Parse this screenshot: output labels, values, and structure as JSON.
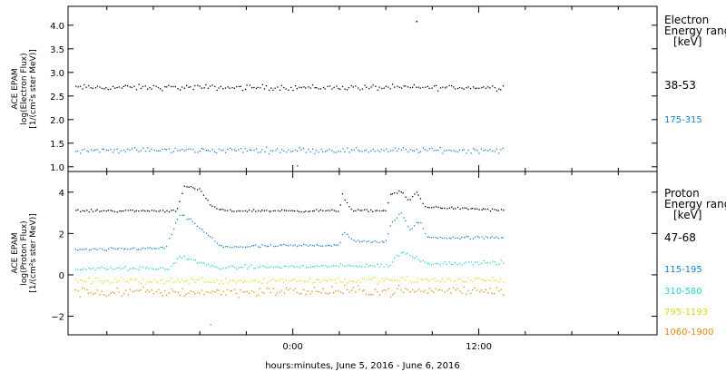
{
  "chart_data": [
    {
      "type": "scatter",
      "ylabel_lines": [
        "ACE EPAM",
        "log(Electron Flux)",
        "[1/(cm²s ster MeV)]"
      ],
      "ylim": [
        0.9,
        4.4
      ],
      "yticks": [
        1.0,
        1.5,
        2.0,
        2.5,
        3.0,
        3.5,
        4.0
      ],
      "ytick_labels": [
        "1.0",
        "1.5",
        "2.0",
        "2.5",
        "3.0",
        "3.5",
        "4.0"
      ],
      "legend_title_lines": [
        "Electron",
        "Energy ranges",
        "[keV]"
      ],
      "series": [
        {
          "name": "38-53",
          "color": "#000000",
          "base": [
            [
              -14,
              2.68
            ],
            [
              14,
              2.68
            ]
          ],
          "noise": 0.05,
          "outliers": [
            [
              8.0,
              4.08
            ]
          ]
        },
        {
          "name": "175-315",
          "color": "#1a7fd0",
          "base": [
            [
              -14,
              1.35
            ],
            [
              14,
              1.35
            ]
          ],
          "noise": 0.05,
          "outliers": [
            [
              0.3,
              1.02
            ]
          ]
        }
      ]
    },
    {
      "type": "scatter",
      "ylabel_lines": [
        "ACE EPAM",
        "log(Proton Flux)",
        "[1/(cm²s ster MeV)]"
      ],
      "ylim": [
        -2.9,
        5.0
      ],
      "yticks": [
        -2,
        0,
        2,
        4
      ],
      "ytick_labels": [
        "−2",
        "0",
        "2",
        "4"
      ],
      "legend_title_lines": [
        "Proton",
        "Energy ranges",
        "[keV]"
      ],
      "series": [
        {
          "name": "47-68",
          "color": "#000000",
          "base": [
            [
              -14,
              3.1
            ],
            [
              -7.5,
              3.1
            ],
            [
              -7.0,
              4.3
            ],
            [
              -6.0,
              4.1
            ],
            [
              -5.2,
              3.3
            ],
            [
              -4.5,
              3.1
            ],
            [
              3.0,
              3.1
            ],
            [
              3.2,
              3.9
            ],
            [
              3.8,
              3.1
            ],
            [
              6.0,
              3.1
            ],
            [
              6.3,
              3.9
            ],
            [
              7.0,
              4.0
            ],
            [
              7.5,
              3.6
            ],
            [
              8.0,
              4.0
            ],
            [
              8.5,
              3.3
            ],
            [
              14,
              3.1
            ]
          ],
          "noise": 0.05,
          "outliers": []
        },
        {
          "name": "115-195",
          "color": "#1a7fd0",
          "base": [
            [
              -14,
              1.2
            ],
            [
              -8.2,
              1.3
            ],
            [
              -7.3,
              2.9
            ],
            [
              -6.5,
              2.6
            ],
            [
              -5.0,
              1.6
            ],
            [
              -4.5,
              1.35
            ],
            [
              3.0,
              1.45
            ],
            [
              3.3,
              2.1
            ],
            [
              4.0,
              1.6
            ],
            [
              6.0,
              1.6
            ],
            [
              6.3,
              2.4
            ],
            [
              7.0,
              3.0
            ],
            [
              7.5,
              2.2
            ],
            [
              8.2,
              2.6
            ],
            [
              8.7,
              1.8
            ],
            [
              14,
              1.8
            ]
          ],
          "noise": 0.06,
          "outliers": []
        },
        {
          "name": "310-580",
          "color": "#26d0d0",
          "base": [
            [
              -14,
              0.3
            ],
            [
              -8.0,
              0.3
            ],
            [
              -7.2,
              0.9
            ],
            [
              -6.0,
              0.6
            ],
            [
              -5.0,
              0.35
            ],
            [
              6.2,
              0.45
            ],
            [
              7.0,
              1.1
            ],
            [
              8.0,
              0.8
            ],
            [
              8.7,
              0.55
            ],
            [
              14,
              0.6
            ]
          ],
          "noise": 0.08,
          "outliers": []
        },
        {
          "name": "795-1193",
          "color": "#d8d820",
          "base": [
            [
              -14,
              -0.3
            ],
            [
              14,
              -0.25
            ]
          ],
          "noise": 0.14,
          "outliers": []
        },
        {
          "name": "1060-1900",
          "color": "#e08a10",
          "base": [
            [
              -14,
              -0.85
            ],
            [
              14,
              -0.75
            ]
          ],
          "noise": 0.2,
          "outliers": [
            [
              -5.3,
              -2.4
            ]
          ]
        }
      ]
    }
  ],
  "x_axis": {
    "range": [
      -14.5,
      23.5
    ],
    "ticks": [
      0,
      12
    ],
    "tick_labels": [
      "0:00",
      "12:00"
    ],
    "minor_ticks": [
      -12,
      -9,
      -6,
      -3,
      3,
      6,
      9,
      15,
      18,
      21
    ],
    "data_end": 13.6,
    "title": "hours:minutes, June  5, 2016 - June  6, 2016"
  }
}
